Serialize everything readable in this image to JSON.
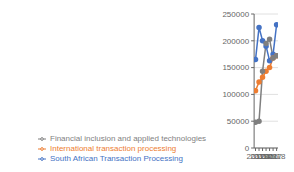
{
  "chart_data": {
    "type": "line",
    "x": [
      2012,
      2013,
      2014,
      2015,
      2016,
      2017,
      2018
    ],
    "series": [
      {
        "name": "South African Transaction Processing",
        "color": "#4472C4",
        "marker": "circle",
        "line_style": "solid",
        "values": [
          165000,
          225000,
          200000,
          190000,
          163000,
          175000,
          230000
        ]
      },
      {
        "name": "International transaction processing",
        "color": "#ED7D31",
        "marker": "circle",
        "line_style": "solid",
        "values": [
          107000,
          123000,
          132000,
          143000,
          150000,
          168000,
          172000
        ]
      },
      {
        "name": "Financial inclusion and applied technologies",
        "color": "#7F7F7F",
        "marker": "circle",
        "line_style": "solid",
        "values": [
          48000,
          50000,
          143000,
          195000,
          203000,
          168000,
          172000
        ]
      }
    ],
    "xlim": [
      2011.6,
      2018.4
    ],
    "xticks": [
      2012,
      2013,
      2014,
      2015,
      2016,
      2017,
      2018
    ],
    "ylim": [
      0,
      250000
    ],
    "yticks": [
      0,
      50000,
      100000,
      150000,
      200000,
      250000
    ],
    "grid": true,
    "legend": "lower left"
  }
}
